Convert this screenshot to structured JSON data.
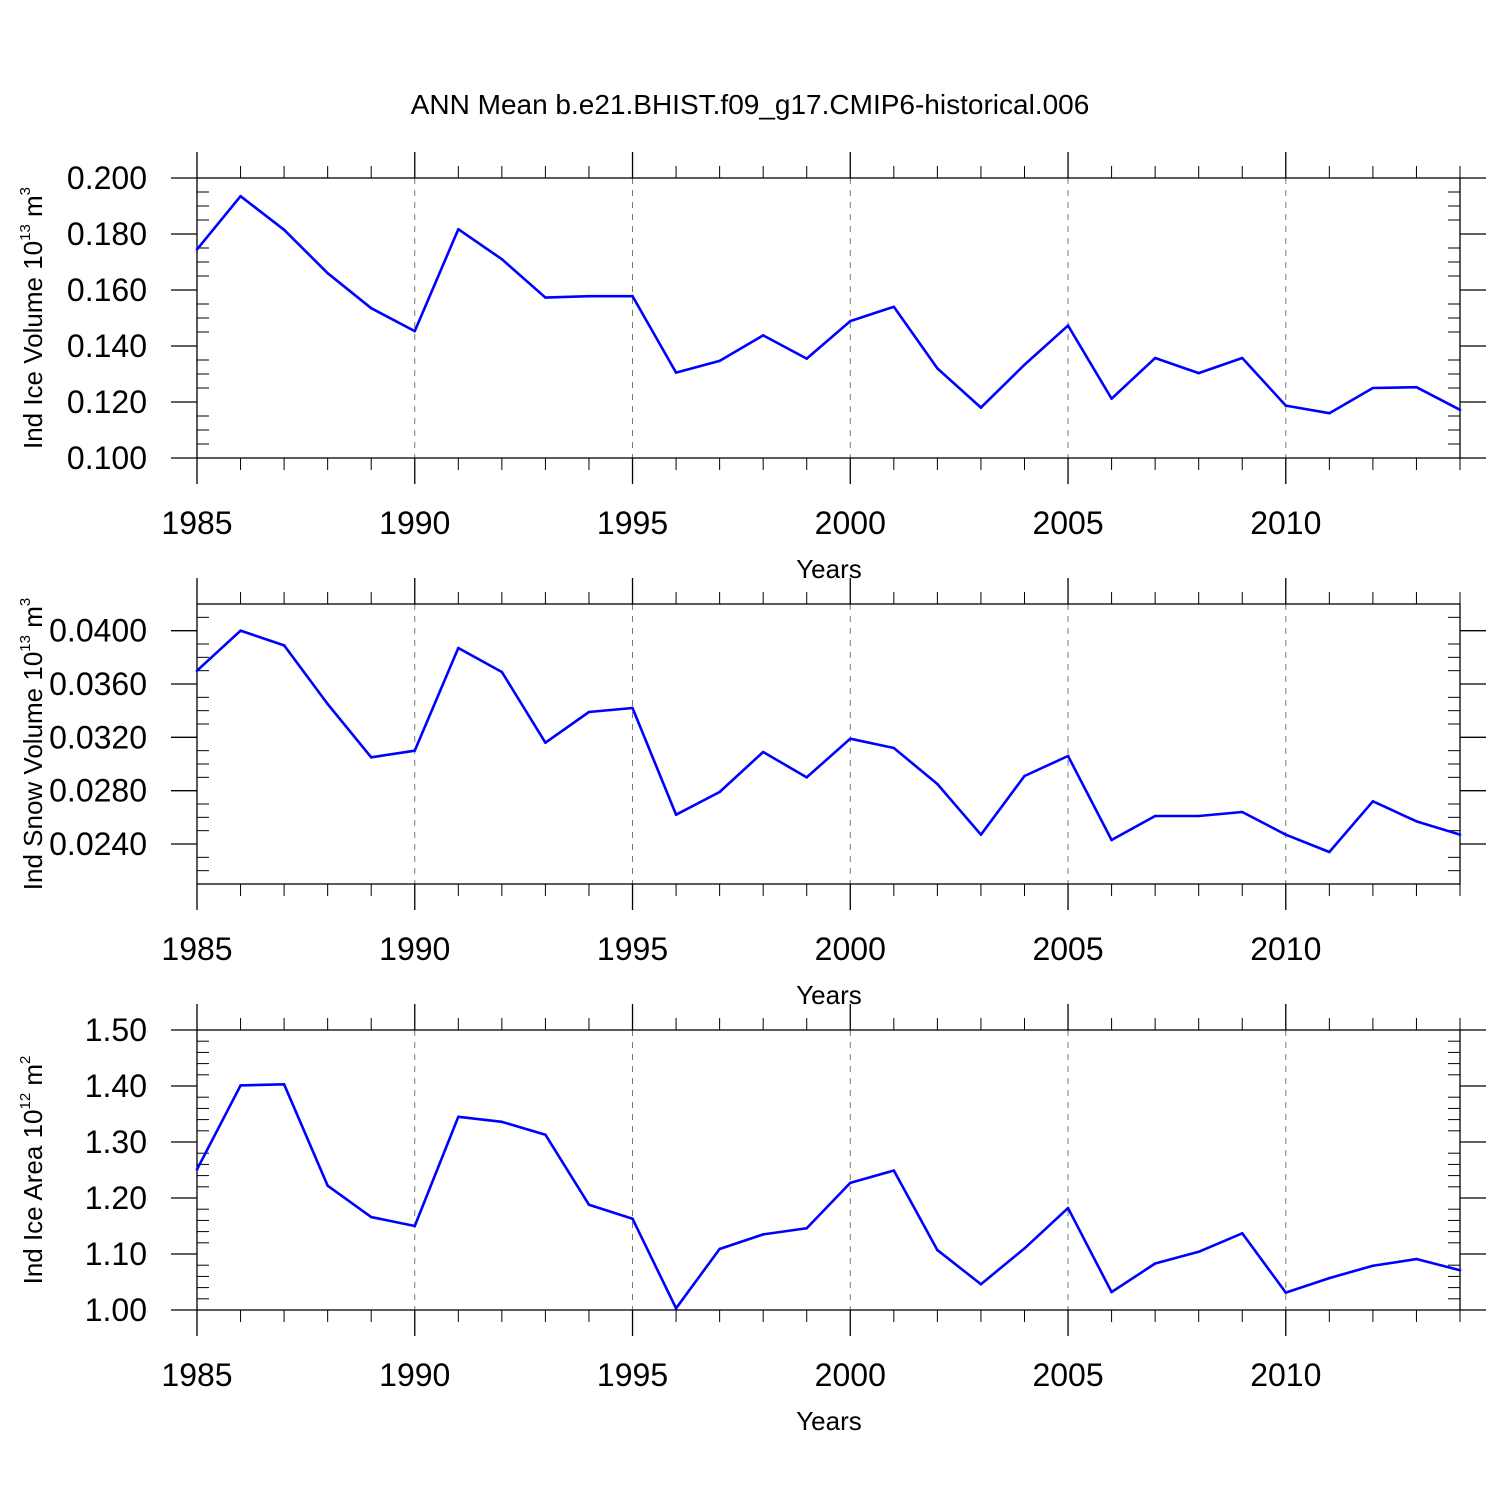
{
  "title": "ANN Mean b.e21.BHIST.f09_g17.CMIP6-historical.006",
  "colors": {
    "line": "#0000ff",
    "axis": "#000000",
    "grid": "#777777"
  },
  "chart_data": [
    {
      "type": "line",
      "title": "ANN Mean b.e21.BHIST.f09_g17.CMIP6-historical.006",
      "ylabel": {
        "main": "Ind Ice Volume 10",
        "exp": "13",
        "unit": " m",
        "unit_exp": "3"
      },
      "xlabel": "Years",
      "xlim": [
        1985,
        2014
      ],
      "ylim": [
        0.1,
        0.2
      ],
      "x_ticks": [
        1985,
        1990,
        1995,
        2000,
        2005,
        2010
      ],
      "x_tick_labels": [
        "1985",
        "1990",
        "1995",
        "2000",
        "2005",
        "2010"
      ],
      "y_ticks": [
        0.1,
        0.12,
        0.14,
        0.16,
        0.18,
        0.2
      ],
      "y_tick_labels": [
        "0.100",
        "0.120",
        "0.140",
        "0.160",
        "0.180",
        "0.200"
      ],
      "y_minor_step": 0.005,
      "grid": "vertical dashed at major x ticks",
      "x": [
        1985,
        1986,
        1987,
        1988,
        1989,
        1990,
        1991,
        1992,
        1993,
        1994,
        1995,
        1996,
        1997,
        1998,
        1999,
        2000,
        2001,
        2002,
        2003,
        2004,
        2005,
        2006,
        2007,
        2008,
        2009,
        2010,
        2011,
        2012,
        2013,
        2014
      ],
      "series": [
        {
          "name": "Ind Ice Volume",
          "values": [
            0.1745,
            0.1935,
            0.1815,
            0.166,
            0.1535,
            0.1453,
            0.1817,
            0.171,
            0.1573,
            0.1578,
            0.1578,
            0.1305,
            0.1347,
            0.1438,
            0.1355,
            0.1489,
            0.154,
            0.132,
            0.118,
            0.1333,
            0.1473,
            0.1212,
            0.1357,
            0.1303,
            0.1357,
            0.1187,
            0.116,
            0.125,
            0.1253,
            0.1172
          ]
        }
      ]
    },
    {
      "type": "line",
      "ylabel": {
        "main": "Ind Snow Volume 10",
        "exp": "13",
        "unit": " m",
        "unit_exp": "3"
      },
      "xlabel": "Years",
      "xlim": [
        1985,
        2014
      ],
      "ylim": [
        0.021,
        0.042
      ],
      "x_ticks": [
        1985,
        1990,
        1995,
        2000,
        2005,
        2010
      ],
      "x_tick_labels": [
        "1985",
        "1990",
        "1995",
        "2000",
        "2005",
        "2010"
      ],
      "y_ticks": [
        0.024,
        0.028,
        0.032,
        0.036,
        0.04
      ],
      "y_tick_labels": [
        "0.0240",
        "0.0280",
        "0.0320",
        "0.0360",
        "0.0400"
      ],
      "y_minor_step": 0.001,
      "grid": "vertical dashed at major x ticks",
      "x": [
        1985,
        1986,
        1987,
        1988,
        1989,
        1990,
        1991,
        1992,
        1993,
        1994,
        1995,
        1996,
        1997,
        1998,
        1999,
        2000,
        2001,
        2002,
        2003,
        2004,
        2005,
        2006,
        2007,
        2008,
        2009,
        2010,
        2011,
        2012,
        2013,
        2014
      ],
      "series": [
        {
          "name": "Ind Snow Volume",
          "values": [
            0.037,
            0.04,
            0.0389,
            0.0345,
            0.0305,
            0.031,
            0.0387,
            0.0369,
            0.0316,
            0.0339,
            0.0342,
            0.0262,
            0.0279,
            0.0309,
            0.029,
            0.0319,
            0.0312,
            0.0285,
            0.0247,
            0.0291,
            0.0306,
            0.0243,
            0.0261,
            0.0261,
            0.0264,
            0.0247,
            0.0234,
            0.0272,
            0.0257,
            0.0247
          ]
        }
      ]
    },
    {
      "type": "line",
      "ylabel": {
        "main": "Ind Ice Area 10",
        "exp": "12",
        "unit": " m",
        "unit_exp": "2"
      },
      "xlabel": "Years",
      "xlim": [
        1985,
        2014
      ],
      "ylim": [
        1.0,
        1.5
      ],
      "x_ticks": [
        1985,
        1990,
        1995,
        2000,
        2005,
        2010
      ],
      "x_tick_labels": [
        "1985",
        "1990",
        "1995",
        "2000",
        "2005",
        "2010"
      ],
      "y_ticks": [
        1.0,
        1.1,
        1.2,
        1.3,
        1.4,
        1.5
      ],
      "y_tick_labels": [
        "1.00",
        "1.10",
        "1.20",
        "1.30",
        "1.40",
        "1.50"
      ],
      "y_minor_step": 0.02,
      "grid": "vertical dashed at major x ticks",
      "x": [
        1985,
        1986,
        1987,
        1988,
        1989,
        1990,
        1991,
        1992,
        1993,
        1994,
        1995,
        1996,
        1997,
        1998,
        1999,
        2000,
        2001,
        2002,
        2003,
        2004,
        2005,
        2006,
        2007,
        2008,
        2009,
        2010,
        2011,
        2012,
        2013,
        2014
      ],
      "series": [
        {
          "name": "Ind Ice Area",
          "values": [
            1.251,
            1.401,
            1.403,
            1.222,
            1.166,
            1.15,
            1.345,
            1.336,
            1.313,
            1.188,
            1.163,
            1.003,
            1.109,
            1.135,
            1.146,
            1.227,
            1.249,
            1.107,
            1.046,
            1.11,
            1.182,
            1.032,
            1.083,
            1.104,
            1.137,
            1.031,
            1.057,
            1.079,
            1.091,
            1.071
          ]
        }
      ]
    }
  ]
}
